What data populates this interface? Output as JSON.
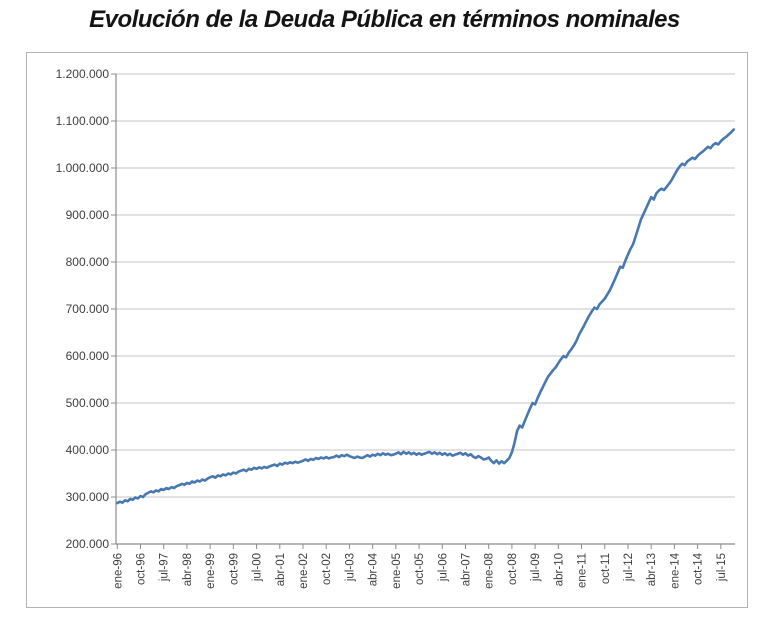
{
  "title": "Evolución de la Deuda Pública en términos nominales",
  "colors": {
    "line": "#4878b0",
    "grid": "#c6c6c6",
    "axis": "#8c8c8c",
    "tick": "#8c8c8c",
    "tick_label": "#3f3f3f",
    "frame_border": "#b3b3b3",
    "background": "#ffffff",
    "title_text": "#141414"
  },
  "chart_data": {
    "type": "line",
    "title": "Evolución de la Deuda Pública en términos nominales",
    "xlabel": "",
    "ylabel": "",
    "grid": true,
    "legend_position": "none",
    "ylim": [
      200000,
      1200000
    ],
    "y_tick_step": 100000,
    "y_tick_labels": [
      "200.000",
      "300.000",
      "400.000",
      "500.000",
      "600.000",
      "700.000",
      "800.000",
      "900.000",
      "1.000.000",
      "1.100.000",
      "1.200.000"
    ],
    "x_start": "ene-96",
    "x_end": "dic-15",
    "x_frequency": "monthly",
    "x_tick_interval_months": 9,
    "x_tick_labels": [
      "ene-96",
      "oct-96",
      "jul-97",
      "abr-98",
      "ene-99",
      "oct-99",
      "jul-00",
      "abr-01",
      "ene-02",
      "oct-02",
      "jul-03",
      "abr-04",
      "ene-05",
      "oct-05",
      "jul-06",
      "abr-07",
      "ene-08",
      "oct-08",
      "jul-09",
      "abr-10",
      "ene-11",
      "oct-11",
      "jul-12",
      "abr-13",
      "ene-14",
      "oct-14",
      "jul-15"
    ],
    "line_color": "#4878b0",
    "values": [
      287000,
      290000,
      288000,
      293000,
      291000,
      296000,
      294000,
      299000,
      297000,
      302000,
      300000,
      306000,
      309000,
      312000,
      310000,
      314000,
      312000,
      317000,
      315000,
      319000,
      317000,
      321000,
      319000,
      323000,
      325000,
      328000,
      326000,
      330000,
      328000,
      333000,
      331000,
      335000,
      333000,
      337000,
      335000,
      339000,
      342000,
      344000,
      341000,
      346000,
      344000,
      348000,
      346000,
      350000,
      348000,
      352000,
      350000,
      354000,
      356000,
      358000,
      355000,
      360000,
      358000,
      362000,
      360000,
      363000,
      361000,
      364000,
      362000,
      365000,
      367000,
      369000,
      366000,
      371000,
      369000,
      373000,
      371000,
      374000,
      372000,
      375000,
      373000,
      375000,
      377000,
      380000,
      377000,
      381000,
      379000,
      383000,
      381000,
      384000,
      382000,
      385000,
      382000,
      384000,
      385000,
      388000,
      385000,
      389000,
      387000,
      390000,
      387000,
      385000,
      383000,
      386000,
      384000,
      383000,
      386000,
      389000,
      386000,
      390000,
      388000,
      392000,
      389000,
      393000,
      390000,
      392000,
      389000,
      390000,
      392000,
      395000,
      391000,
      396000,
      392000,
      395000,
      391000,
      394000,
      390000,
      393000,
      390000,
      392000,
      394000,
      396000,
      392000,
      395000,
      391000,
      394000,
      390000,
      393000,
      389000,
      392000,
      388000,
      390000,
      392000,
      394000,
      390000,
      393000,
      388000,
      391000,
      386000,
      383000,
      387000,
      384000,
      380000,
      381000,
      384000,
      377000,
      372000,
      378000,
      371000,
      376000,
      372000,
      377000,
      383000,
      395000,
      415000,
      440000,
      452000,
      448000,
      462000,
      475000,
      488000,
      500000,
      497000,
      511000,
      523000,
      534000,
      545000,
      556000,
      563000,
      570000,
      576000,
      585000,
      593000,
      600000,
      597000,
      607000,
      614000,
      622000,
      632000,
      645000,
      655000,
      665000,
      676000,
      686000,
      695000,
      703000,
      700000,
      710000,
      716000,
      722000,
      731000,
      740000,
      752000,
      764000,
      777000,
      790000,
      788000,
      803000,
      816000,
      828000,
      838000,
      855000,
      872000,
      890000,
      902000,
      914000,
      926000,
      938000,
      933000,
      946000,
      952000,
      956000,
      953000,
      960000,
      967000,
      975000,
      985000,
      995000,
      1003000,
      1009000,
      1006000,
      1014000,
      1018000,
      1022000,
      1019000,
      1026000,
      1031000,
      1035000,
      1040000,
      1045000,
      1042000,
      1049000,
      1053000,
      1050000,
      1057000,
      1062000,
      1066000,
      1071000,
      1076000,
      1082000
    ]
  }
}
